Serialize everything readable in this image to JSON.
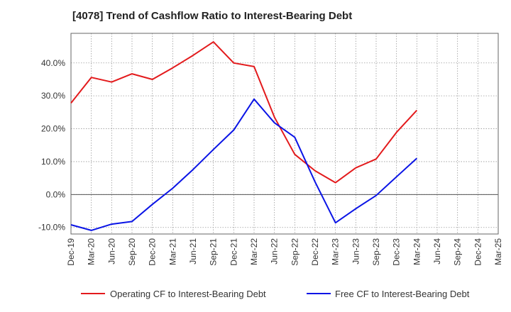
{
  "chart_data": {
    "type": "line",
    "title": "[4078]  Trend of Cashflow Ratio to Interest-Bearing Debt",
    "xlabel": "",
    "ylabel": "",
    "categories": [
      "Dec-19",
      "Mar-20",
      "Jun-20",
      "Sep-20",
      "Dec-20",
      "Mar-21",
      "Jun-21",
      "Sep-21",
      "Dec-21",
      "Mar-22",
      "Jun-22",
      "Sep-22",
      "Dec-22",
      "Mar-23",
      "Jun-23",
      "Sep-23",
      "Dec-23",
      "Mar-24",
      "Jun-24",
      "Sep-24",
      "Dec-24",
      "Mar-25"
    ],
    "ylim": [
      -12,
      49
    ],
    "yticks": [
      -10,
      0,
      10,
      20,
      30,
      40
    ],
    "ytick_labels": [
      "-10.0%",
      "0.0%",
      "10.0%",
      "20.0%",
      "30.0%",
      "40.0%"
    ],
    "grid": true,
    "legend_position": "bottom",
    "series": [
      {
        "name": "Operating CF to Interest-Bearing Debt",
        "color": "#e31a1c",
        "values": [
          27.8,
          35.6,
          34.2,
          36.7,
          35.0,
          38.5,
          42.3,
          46.4,
          40.0,
          38.9,
          23.5,
          12.2,
          7.2,
          3.6,
          8.1,
          10.8,
          18.9,
          25.6,
          null,
          null,
          null,
          null
        ]
      },
      {
        "name": "Free CF to Interest-Bearing Debt",
        "color": "#0a14e6",
        "values": [
          -9.2,
          -10.9,
          -9.0,
          -8.2,
          -3.0,
          1.9,
          7.6,
          13.7,
          19.6,
          29.0,
          21.8,
          17.4,
          3.8,
          -8.6,
          -4.3,
          -0.3,
          5.4,
          11.0,
          null,
          null,
          null,
          null
        ]
      }
    ]
  }
}
